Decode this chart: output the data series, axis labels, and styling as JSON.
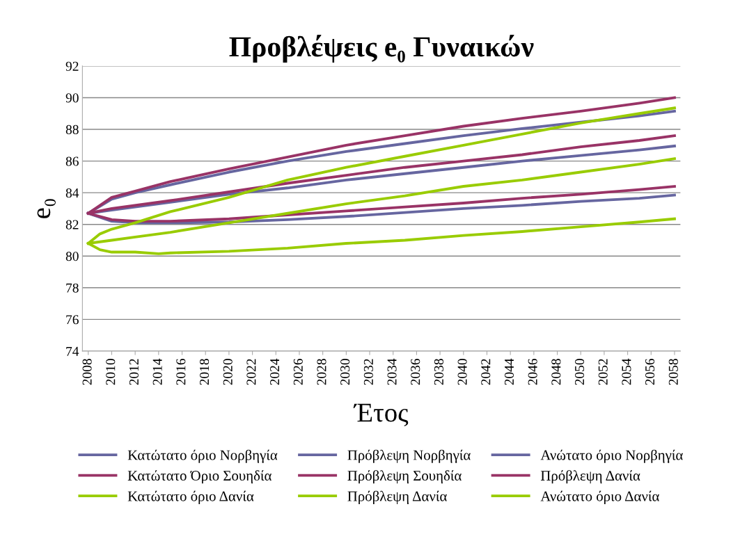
{
  "chart_data": {
    "type": "line",
    "title": "Προβλέψεις e₀ Γυναικών",
    "xlabel": "Έτος",
    "ylabel": "e₀",
    "xlim": [
      2007.5,
      2058.5
    ],
    "xticks": [
      2008,
      2010,
      2012,
      2014,
      2016,
      2018,
      2020,
      2022,
      2024,
      2026,
      2028,
      2030,
      2032,
      2034,
      2036,
      2038,
      2040,
      2042,
      2044,
      2046,
      2048,
      2050,
      2052,
      2054,
      2056,
      2058
    ],
    "ylim": [
      74,
      92
    ],
    "yticks": [
      74,
      76,
      78,
      80,
      82,
      84,
      86,
      88,
      90,
      92
    ],
    "grid": "y",
    "legend": "bottom",
    "marker": "none",
    "line_style": "solid",
    "series": [
      {
        "name": "Κατώτατο όριο Νορβηγία",
        "color": "#6666a0",
        "x": [
          2008,
          2010,
          2012,
          2015,
          2020,
          2025,
          2030,
          2035,
          2040,
          2045,
          2050,
          2055,
          2058
        ],
        "values": [
          82.7,
          82.2,
          82.1,
          82.1,
          82.15,
          82.3,
          82.5,
          82.75,
          83.0,
          83.2,
          83.45,
          83.65,
          83.85
        ]
      },
      {
        "name": "Πρόβλεψη Νορβηγία",
        "color": "#6666a0",
        "x": [
          2008,
          2010,
          2015,
          2020,
          2025,
          2030,
          2035,
          2040,
          2045,
          2050,
          2055,
          2058
        ],
        "values": [
          82.7,
          82.9,
          83.4,
          83.9,
          84.3,
          84.8,
          85.2,
          85.6,
          86.0,
          86.35,
          86.7,
          86.95
        ]
      },
      {
        "name": "Ανώτατο όριο Νορβηγία",
        "color": "#6666a0",
        "x": [
          2008,
          2010,
          2012,
          2015,
          2020,
          2025,
          2030,
          2035,
          2040,
          2045,
          2050,
          2055,
          2058
        ],
        "values": [
          82.7,
          83.6,
          84.0,
          84.5,
          85.3,
          86.0,
          86.6,
          87.1,
          87.6,
          88.05,
          88.45,
          88.85,
          89.15
        ]
      },
      {
        "name": "Κατώτατο Όριο Σουηδία",
        "color": "#993366",
        "x": [
          2008,
          2010,
          2012,
          2015,
          2020,
          2025,
          2030,
          2035,
          2040,
          2045,
          2050,
          2055,
          2058
        ],
        "values": [
          82.7,
          82.3,
          82.2,
          82.2,
          82.35,
          82.6,
          82.85,
          83.1,
          83.35,
          83.65,
          83.9,
          84.2,
          84.4
        ]
      },
      {
        "name": "Πρόβλεψη Σουηδία",
        "color": "#993366",
        "x": [
          2008,
          2010,
          2015,
          2020,
          2025,
          2030,
          2035,
          2040,
          2045,
          2050,
          2055,
          2058
        ],
        "values": [
          82.7,
          83.0,
          83.5,
          84.05,
          84.6,
          85.1,
          85.6,
          86.0,
          86.4,
          86.9,
          87.3,
          87.6
        ]
      },
      {
        "name": "Πρόβλεψη Δανία",
        "color": "#993366",
        "x": [
          2008,
          2010,
          2012,
          2015,
          2020,
          2025,
          2030,
          2035,
          2040,
          2045,
          2050,
          2055,
          2058
        ],
        "values": [
          82.7,
          83.7,
          84.1,
          84.7,
          85.5,
          86.25,
          87.0,
          87.6,
          88.2,
          88.7,
          89.15,
          89.65,
          90.0
        ]
      },
      {
        "name": "Κατώτατο όριο Δανία",
        "color": "#99cc00",
        "x": [
          2008,
          2009,
          2010,
          2012,
          2014,
          2015,
          2020,
          2025,
          2030,
          2035,
          2040,
          2045,
          2050,
          2055,
          2058
        ],
        "values": [
          80.8,
          80.4,
          80.25,
          80.25,
          80.15,
          80.2,
          80.3,
          80.5,
          80.8,
          81.0,
          81.3,
          81.55,
          81.85,
          82.15,
          82.35
        ]
      },
      {
        "name": "Πρόβλεψη Δανία",
        "color": "#99cc00",
        "x": [
          2008,
          2010,
          2012,
          2015,
          2020,
          2025,
          2030,
          2035,
          2040,
          2045,
          2050,
          2055,
          2058
        ],
        "values": [
          80.8,
          81.0,
          81.2,
          81.5,
          82.1,
          82.7,
          83.3,
          83.8,
          84.4,
          84.8,
          85.3,
          85.8,
          86.15
        ]
      },
      {
        "name": "Ανώτατο όριο Δανία",
        "color": "#99cc00",
        "x": [
          2008,
          2009,
          2010,
          2012,
          2015,
          2020,
          2025,
          2030,
          2035,
          2040,
          2045,
          2050,
          2055,
          2058
        ],
        "values": [
          80.8,
          81.4,
          81.7,
          82.1,
          82.8,
          83.7,
          84.8,
          85.6,
          86.3,
          87.0,
          87.7,
          88.4,
          89.0,
          89.35
        ]
      }
    ]
  }
}
